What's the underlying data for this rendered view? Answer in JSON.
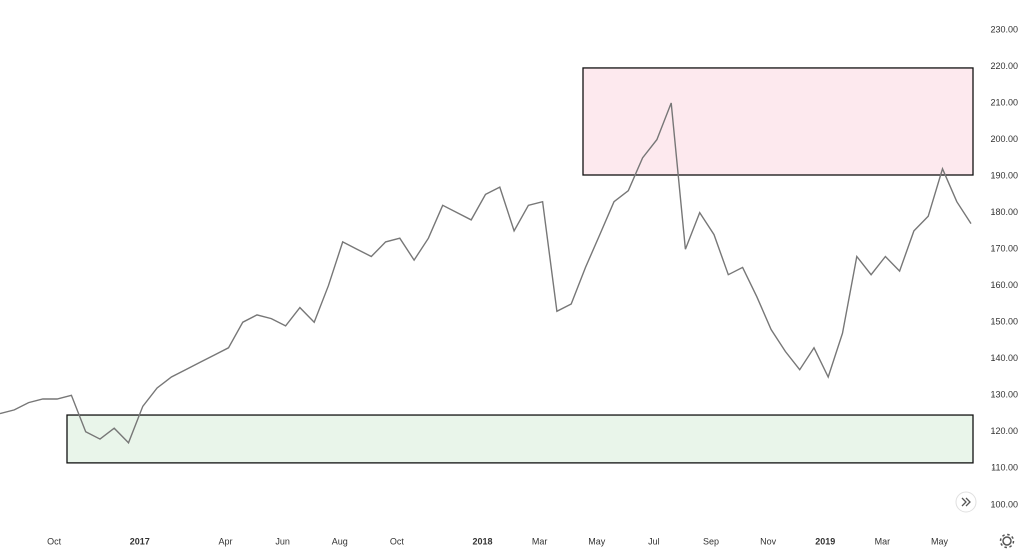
{
  "chart_data": {
    "type": "line",
    "color": "#777777",
    "categories": [
      null,
      null,
      null,
      null,
      "Oct",
      null,
      null,
      null,
      null,
      null,
      "2017",
      null,
      null,
      null,
      null,
      null,
      "Apr",
      null,
      null,
      null,
      "Jun",
      null,
      null,
      null,
      "Aug",
      null,
      null,
      null,
      "Oct",
      null,
      null,
      null,
      null,
      null,
      "2018",
      null,
      null,
      null,
      "Mar",
      null,
      null,
      null,
      "May",
      null,
      null,
      null,
      "Jul",
      null,
      null,
      null,
      "Sep",
      null,
      null,
      null,
      "Nov",
      null,
      null,
      null,
      "2019",
      null,
      null,
      null,
      "Mar",
      null,
      null,
      null,
      "May",
      null,
      null
    ],
    "values": [
      125,
      126,
      128,
      129,
      129,
      130,
      120,
      118,
      121,
      117,
      127,
      132,
      135,
      137,
      139,
      141,
      143,
      150,
      152,
      151,
      149,
      154,
      150,
      160,
      172,
      170,
      168,
      172,
      173,
      167,
      173,
      182,
      180,
      178,
      185,
      187,
      175,
      182,
      183,
      153,
      155,
      165,
      174,
      183,
      186,
      195,
      200,
      210,
      170,
      180,
      174,
      163,
      165,
      157,
      148,
      142,
      137,
      143,
      135,
      147,
      168,
      163,
      168,
      164,
      175,
      179,
      192,
      183,
      177
    ],
    "ylim": [
      94.5,
      238.2
    ],
    "yticks": [
      {
        "value": 100,
        "label": "100.00"
      },
      {
        "value": 110,
        "label": "110.00"
      },
      {
        "value": 120,
        "label": "120.00"
      },
      {
        "value": 130,
        "label": "130.00"
      },
      {
        "value": 140,
        "label": "140.00"
      },
      {
        "value": 150,
        "label": "150.00"
      },
      {
        "value": 160,
        "label": "160.00"
      },
      {
        "value": 170,
        "label": "170.00"
      },
      {
        "value": 180,
        "label": "180.00"
      },
      {
        "value": 190,
        "label": "190.00"
      },
      {
        "value": 200,
        "label": "200.00"
      },
      {
        "value": 210,
        "label": "210.00"
      },
      {
        "value": 220,
        "label": "220.00"
      },
      {
        "value": 230,
        "label": "230.00"
      }
    ],
    "zones": [
      {
        "ylim": [
          190.3,
          219.6
        ],
        "color": "#fde9ee"
      },
      {
        "ylim": [
          111.5,
          124.6
        ],
        "color": "#e9f5ea"
      }
    ]
  }
}
